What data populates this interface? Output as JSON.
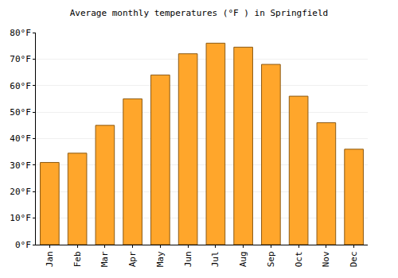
{
  "chart_data": {
    "type": "bar",
    "title": "Average monthly temperatures (°F ) in Springfield",
    "categories": [
      "Jan",
      "Feb",
      "Mar",
      "Apr",
      "May",
      "Jun",
      "Jul",
      "Aug",
      "Sep",
      "Oct",
      "Nov",
      "Dec"
    ],
    "values": [
      31,
      34.5,
      45,
      55,
      64,
      72,
      76,
      74.5,
      68,
      56,
      46,
      36
    ],
    "color": "#ffa62b",
    "ylim": [
      0,
      80
    ],
    "yticks": [
      {
        "value": 0,
        "label": "0°F"
      },
      {
        "value": 10,
        "label": "10°F"
      },
      {
        "value": 20,
        "label": "20°F"
      },
      {
        "value": 30,
        "label": "30°F"
      },
      {
        "value": 40,
        "label": "40°F"
      },
      {
        "value": 50,
        "label": "50°F"
      },
      {
        "value": 60,
        "label": "60°F"
      },
      {
        "value": 70,
        "label": "70°F"
      },
      {
        "value": 80,
        "label": "80°F"
      }
    ],
    "grid": true
  }
}
